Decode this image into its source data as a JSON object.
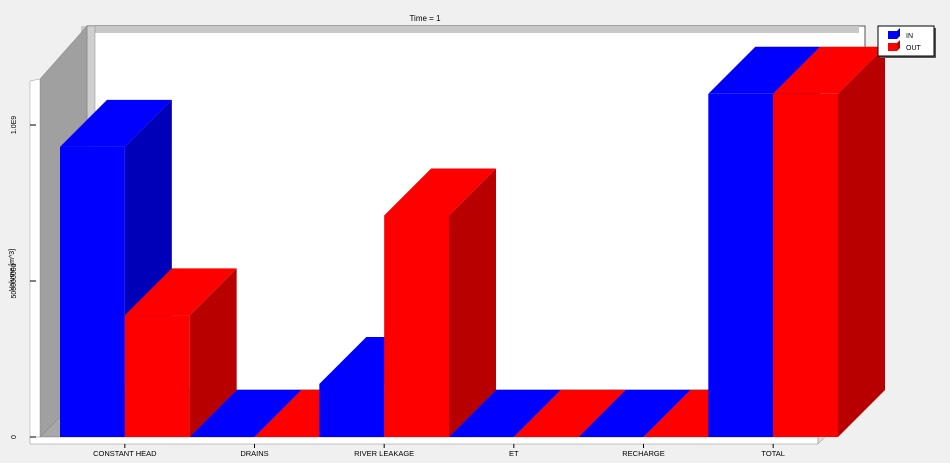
{
  "chart_data": {
    "type": "bar",
    "title": "Time = 1",
    "xlabel": "",
    "ylabel": "Volume [m^3]",
    "ylim": [
      0,
      1200000000
    ],
    "yticks": [
      0,
      500000000,
      1000000000
    ],
    "ytick_labels": [
      "0",
      "500000000",
      "1.0E9"
    ],
    "categories": [
      "CONSTANT HEAD",
      "DRAINS",
      "RIVER LEAKAGE",
      "ET",
      "RECHARGE",
      "TOTAL"
    ],
    "series": [
      {
        "name": "IN",
        "color": "#0000ff",
        "values": [
          930000000,
          0,
          170000000,
          0,
          0,
          1100000000
        ]
      },
      {
        "name": "OUT",
        "color": "#ff0000",
        "values": [
          390000000,
          0,
          710000000,
          0,
          0,
          1100000000
        ]
      }
    ],
    "legend_position": "top-right",
    "grid": false,
    "style": "3d-bar"
  }
}
